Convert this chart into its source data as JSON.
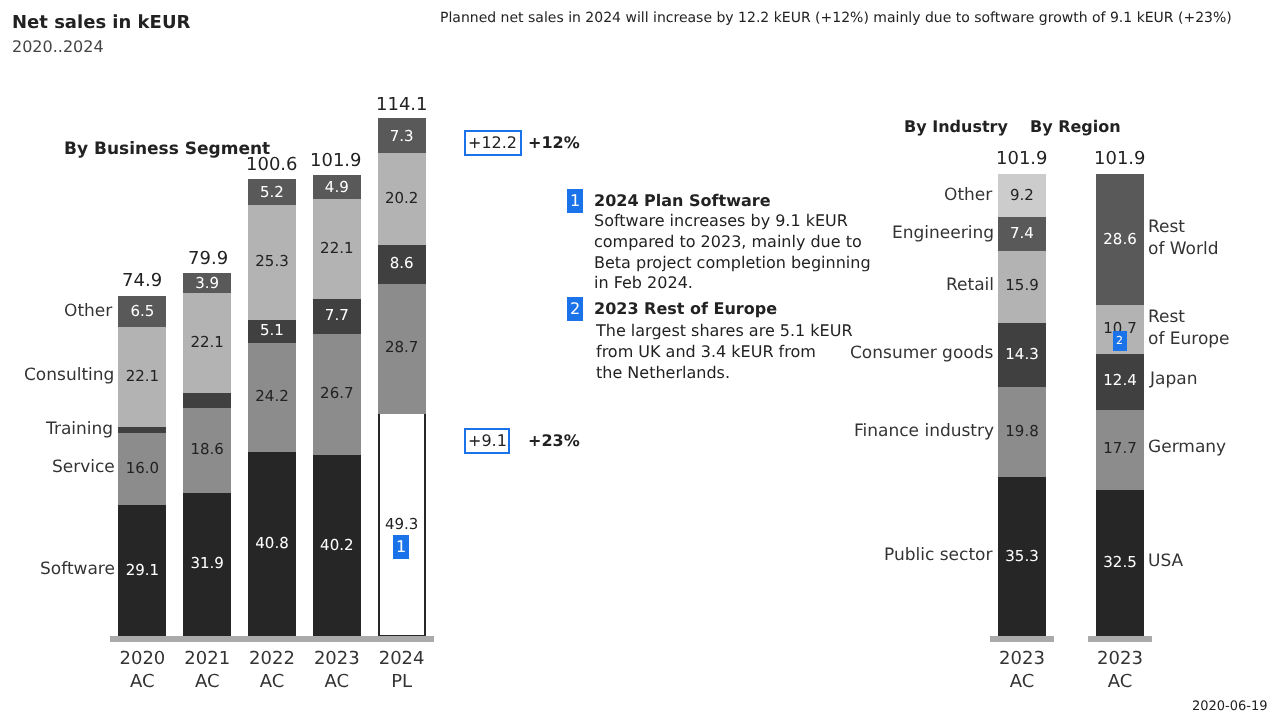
{
  "chart_data": [
    {
      "type": "bar",
      "title": "Net sales in kEUR",
      "subtitle": "2020..2024",
      "stacked": true,
      "legend": false,
      "data_labels": true,
      "categories": [
        "2020\nAC",
        "2021\nAC",
        "2022\nAC",
        "2023\nAC",
        "2024\nPL"
      ],
      "series": [
        {
          "name": "Software",
          "color": "#262626",
          "colors": [
            "#262626",
            "#262626",
            "#262626",
            "#262626",
            "#ffffff"
          ],
          "values": [
            29.1,
            31.9,
            40.8,
            40.2,
            49.3
          ]
        },
        {
          "name": "Service",
          "color": "#8c8c8c",
          "values": [
            16.0,
            18.6,
            24.2,
            26.7,
            28.7
          ],
          "value_labels": [
            "16.0",
            "18.6",
            "24.2",
            "26.7",
            "28.7"
          ]
        },
        {
          "name": "Training",
          "color": "#404040",
          "values": [
            1.2,
            3.4,
            5.1,
            7.7,
            8.6
          ],
          "value_labels": [
            null,
            null,
            "5.1",
            "7.7",
            "8.6"
          ]
        },
        {
          "name": "Consulting",
          "color": "#b3b3b3",
          "values": [
            22.1,
            22.1,
            25.3,
            22.1,
            20.2
          ]
        },
        {
          "name": "Other",
          "color": "#595959",
          "values": [
            6.5,
            3.9,
            5.2,
            4.9,
            7.3
          ]
        }
      ],
      "totals": [
        "74.9",
        "79.9",
        "100.6",
        "101.9",
        "114.1"
      ],
      "annotations": [
        "Planned net sales in 2024 will increase by 12.2 kEUR (+12%) mainly due to software growth of 9.1 kEUR (+23%)",
        "By Business Segment",
        "+12.2",
        "+12%",
        "+9.1",
        "+23%",
        "1",
        "1",
        "2024 Plan Software",
        "Software increases by 9.1 kEUR\ncompared to 2023, mainly due to\nBeta project completion beginning\nin Feb 2024.",
        "2",
        "2023 Rest of Europe",
        "The largest shares are 5.1 kEUR\nfrom UK and 3.4 kEUR from\nthe Netherlands.",
        "2020-06-19"
      ]
    },
    {
      "type": "bar",
      "title": "By Industry",
      "stacked": true,
      "legend": false,
      "data_labels": true,
      "categories": [
        "2023\nAC"
      ],
      "series": [
        {
          "name": "Public sector",
          "color": "#262626",
          "values": [
            35.3
          ]
        },
        {
          "name": "Finance industry",
          "color": "#8c8c8c",
          "values": [
            19.8
          ]
        },
        {
          "name": "Consumer goods",
          "color": "#404040",
          "values": [
            14.3
          ]
        },
        {
          "name": "Retail",
          "color": "#b3b3b3",
          "values": [
            15.9
          ]
        },
        {
          "name": "Engineering",
          "color": "#595959",
          "values": [
            7.4
          ]
        },
        {
          "name": "Other",
          "color": "#cccccc",
          "values": [
            9.2
          ]
        }
      ],
      "totals": [
        "101.9"
      ]
    },
    {
      "type": "bar",
      "title": "By Region",
      "stacked": true,
      "legend": false,
      "data_labels": true,
      "categories": [
        "2023\nAC"
      ],
      "series": [
        {
          "name": "USA",
          "color": "#262626",
          "values": [
            32.5
          ]
        },
        {
          "name": "Germany",
          "color": "#8c8c8c",
          "values": [
            17.7
          ]
        },
        {
          "name": "Japan",
          "color": "#404040",
          "values": [
            12.4
          ]
        },
        {
          "name": "Rest\nof Europe",
          "color": "#b3b3b3",
          "values": [
            10.7
          ]
        },
        {
          "name": "Rest\nof World",
          "color": "#595959",
          "values": [
            28.6
          ]
        }
      ],
      "totals": [
        "101.9"
      ],
      "annotations": [
        "2"
      ]
    }
  ]
}
